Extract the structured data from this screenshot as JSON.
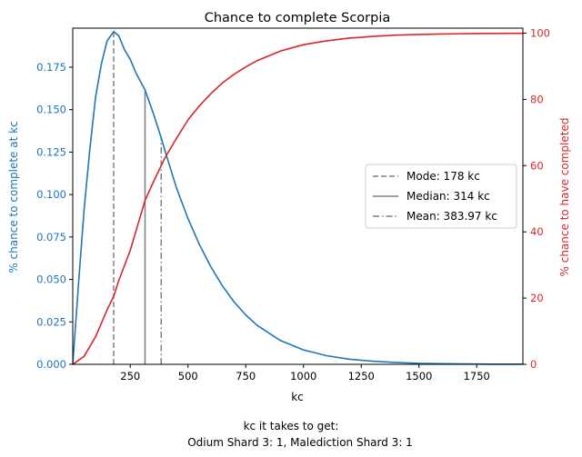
{
  "chart_data": {
    "type": "line",
    "title": "Chance to complete Scorpia",
    "xlabel": "kc",
    "ylabel_left": "% chance to complete at kc",
    "ylabel_right": "% chance to have completed",
    "xlim": [
      1,
      1950
    ],
    "ylim_left": [
      0,
      0.198
    ],
    "ylim_right": [
      0,
      101.5
    ],
    "x_ticks": [
      250,
      500,
      750,
      1000,
      1250,
      1500,
      1750
    ],
    "y_left_ticks": [
      "0.000",
      "0.025",
      "0.050",
      "0.075",
      "0.100",
      "0.125",
      "0.150",
      "0.175"
    ],
    "y_right_ticks": [
      0,
      20,
      40,
      60,
      80,
      100
    ],
    "colors": {
      "left": "#1f77b4",
      "right": "#d62728",
      "ref": "#808080"
    },
    "series": [
      {
        "axis": "left",
        "x": [
          1,
          25,
          50,
          75,
          100,
          125,
          150,
          178,
          200,
          225,
          250,
          275,
          314,
          350,
          384,
          400,
          450,
          500,
          550,
          600,
          650,
          700,
          750,
          800,
          900,
          1000,
          1100,
          1200,
          1300,
          1400,
          1500,
          1600,
          1700,
          1800,
          1950
        ],
        "y": [
          0.0,
          0.0457,
          0.0906,
          0.1268,
          0.1574,
          0.177,
          0.1905,
          0.196,
          0.1936,
          0.1853,
          0.1797,
          0.1715,
          0.1616,
          0.1478,
          0.1333,
          0.126,
          0.104,
          0.0859,
          0.0704,
          0.0572,
          0.046,
          0.0367,
          0.0291,
          0.0229,
          0.014,
          0.0085,
          0.0051,
          0.003,
          0.0018,
          0.0011,
          0.0006,
          0.0004,
          0.0002,
          0.0001,
          0.0001
        ]
      },
      {
        "axis": "right",
        "x": [
          1,
          50,
          100,
          150,
          178,
          200,
          250,
          314,
          350,
          384,
          400,
          450,
          500,
          550,
          600,
          650,
          700,
          750,
          800,
          900,
          1000,
          1100,
          1200,
          1300,
          1400,
          1500,
          1600,
          1700,
          1800,
          1950
        ],
        "y": [
          0.0,
          2.4,
          8.3,
          16.5,
          20.5,
          25.2,
          34.4,
          49.5,
          55.0,
          60.0,
          62.3,
          68.2,
          73.8,
          78.1,
          81.8,
          85.0,
          87.6,
          89.8,
          91.7,
          94.6,
          96.5,
          97.7,
          98.5,
          99.0,
          99.4,
          99.6,
          99.75,
          99.84,
          99.9,
          99.95
        ]
      }
    ],
    "reference_lines": [
      {
        "label": "Mode: 178 kc",
        "x": 178,
        "style": "dashed"
      },
      {
        "label": "Median: 314 kc",
        "x": 314,
        "style": "solid"
      },
      {
        "label": "Mean: 383.97 kc",
        "x": 383.97,
        "style": "dashdot"
      }
    ],
    "legend_position": "center-right",
    "caption_line1": "kc it takes to get:",
    "caption_line2": "Odium Shard 3: 1,  Malediction Shard 3: 1"
  }
}
